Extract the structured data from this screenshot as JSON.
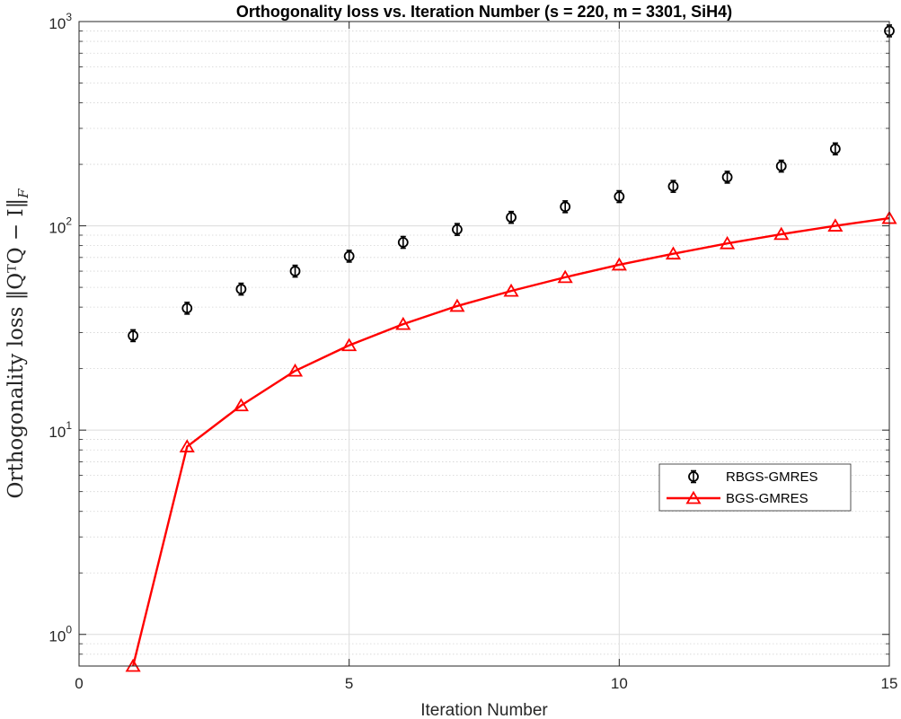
{
  "chart_data": {
    "type": "line",
    "title": "Orthogonality loss vs. Iteration Number (s = 220, m = 3301, SiH4)",
    "xlabel": "Iteration Number",
    "ylabel": "Orthogonality loss ‖QᵀQ − I‖",
    "ylabel_subscript": "F",
    "x": [
      1,
      2,
      3,
      4,
      5,
      6,
      7,
      8,
      9,
      10,
      11,
      12,
      13,
      14,
      15
    ],
    "xlim": [
      0,
      15
    ],
    "ylim": [
      0.7,
      1000
    ],
    "yscale": "log",
    "grid": true,
    "xticks": [
      0,
      5,
      10,
      15
    ],
    "yticks": [
      {
        "value": 1,
        "base": "10",
        "exp": "0"
      },
      {
        "value": 10,
        "base": "10",
        "exp": "1"
      },
      {
        "value": 100,
        "base": "10",
        "exp": "2"
      },
      {
        "value": 1000,
        "base": "10",
        "exp": "3"
      }
    ],
    "legend_position": "right",
    "series": [
      {
        "name": "RBGS-GMRES",
        "color": "#000000",
        "marker": "circle-errorbar",
        "line": false,
        "values": [
          29,
          39.5,
          49,
          60,
          71,
          83,
          96,
          110,
          124,
          139,
          156,
          173,
          196,
          238,
          900
        ]
      },
      {
        "name": "BGS-GMRES",
        "color": "#ff0000",
        "marker": "triangle",
        "line": true,
        "values": [
          0.7,
          8.3,
          13.2,
          19.5,
          26,
          33,
          40.5,
          48,
          56,
          64.5,
          73,
          82,
          91,
          100,
          109
        ]
      }
    ]
  }
}
